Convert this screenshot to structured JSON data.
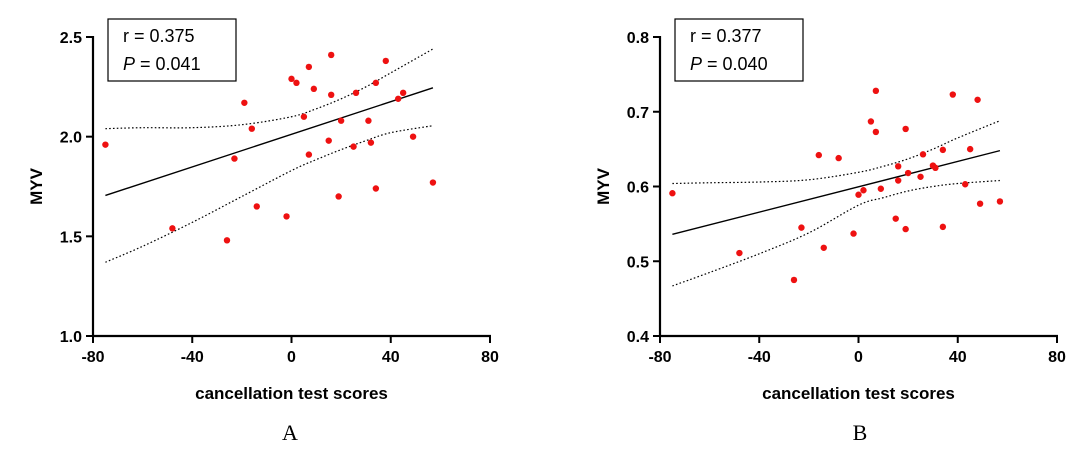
{
  "figure": {
    "panel_labels": [
      "A",
      "B"
    ]
  },
  "chart_data": [
    {
      "type": "scatter",
      "panel": "A",
      "xlabel": "cancellation test scores",
      "ylabel": "MYV",
      "xlim": [
        -80,
        80
      ],
      "ylim": [
        1.0,
        2.5
      ],
      "xticks": [
        -80,
        -40,
        0,
        40,
        80
      ],
      "yticks": [
        1.0,
        1.5,
        2.0,
        2.5
      ],
      "ytick_labels": [
        "1.0",
        "1.5",
        "2.0",
        "2.5"
      ],
      "stats": {
        "r_label": "r  = 0.375",
        "p_prefix": "P",
        "p_rest": " = 0.041"
      },
      "regression": {
        "x": [
          -75,
          57
        ],
        "y": [
          1.705,
          2.245
        ]
      },
      "ci_band": {
        "x": [
          -75,
          -60,
          -40,
          -20,
          0,
          10,
          20,
          30,
          40,
          57
        ],
        "upper": [
          2.04,
          2.045,
          2.045,
          2.06,
          2.1,
          2.14,
          2.19,
          2.25,
          2.32,
          2.44
        ],
        "lower": [
          1.37,
          1.45,
          1.57,
          1.7,
          1.83,
          1.885,
          1.935,
          1.98,
          2.02,
          2.055
        ]
      },
      "points": [
        {
          "x": -75,
          "y": 1.96
        },
        {
          "x": -48,
          "y": 1.54
        },
        {
          "x": -26,
          "y": 1.48
        },
        {
          "x": -23,
          "y": 1.89
        },
        {
          "x": -19,
          "y": 2.17
        },
        {
          "x": -16,
          "y": 2.04
        },
        {
          "x": -14,
          "y": 1.65
        },
        {
          "x": -2,
          "y": 1.6
        },
        {
          "x": 0,
          "y": 2.29
        },
        {
          "x": 2,
          "y": 2.27
        },
        {
          "x": 5,
          "y": 2.1
        },
        {
          "x": 7,
          "y": 2.35
        },
        {
          "x": 7,
          "y": 1.91
        },
        {
          "x": 9,
          "y": 2.24
        },
        {
          "x": 15,
          "y": 1.98
        },
        {
          "x": 16,
          "y": 2.41
        },
        {
          "x": 16,
          "y": 2.21
        },
        {
          "x": 19,
          "y": 1.7
        },
        {
          "x": 20,
          "y": 2.08
        },
        {
          "x": 25,
          "y": 1.95
        },
        {
          "x": 26,
          "y": 2.22
        },
        {
          "x": 31,
          "y": 2.08
        },
        {
          "x": 32,
          "y": 1.97
        },
        {
          "x": 34,
          "y": 1.74
        },
        {
          "x": 34,
          "y": 2.27
        },
        {
          "x": 38,
          "y": 2.38
        },
        {
          "x": 43,
          "y": 2.19
        },
        {
          "x": 45,
          "y": 2.22
        },
        {
          "x": 49,
          "y": 2.0
        },
        {
          "x": 57,
          "y": 1.77
        }
      ]
    },
    {
      "type": "scatter",
      "panel": "B",
      "xlabel": "cancellation test scores",
      "ylabel": "MYV",
      "xlim": [
        -80,
        80
      ],
      "ylim": [
        0.4,
        0.8
      ],
      "xticks": [
        -80,
        -40,
        0,
        40,
        80
      ],
      "yticks": [
        0.4,
        0.5,
        0.6,
        0.7,
        0.8
      ],
      "ytick_labels": [
        "0.4",
        "0.5",
        "0.6",
        "0.7",
        "0.8"
      ],
      "stats": {
        "r_label": "r  = 0.377",
        "p_prefix": "P",
        "p_rest": " = 0.040"
      },
      "regression": {
        "x": [
          -75,
          57
        ],
        "y": [
          0.536,
          0.648
        ]
      },
      "ci_band": {
        "x": [
          -75,
          -60,
          -40,
          -20,
          0,
          10,
          20,
          30,
          40,
          57
        ],
        "upper": [
          0.604,
          0.605,
          0.606,
          0.609,
          0.619,
          0.627,
          0.637,
          0.65,
          0.665,
          0.688
        ],
        "lower": [
          0.467,
          0.485,
          0.51,
          0.538,
          0.575,
          0.585,
          0.594,
          0.6,
          0.604,
          0.608
        ]
      },
      "points": [
        {
          "x": -75,
          "y": 0.591
        },
        {
          "x": -48,
          "y": 0.511
        },
        {
          "x": -26,
          "y": 0.475
        },
        {
          "x": -23,
          "y": 0.545
        },
        {
          "x": -16,
          "y": 0.642
        },
        {
          "x": -14,
          "y": 0.518
        },
        {
          "x": -8,
          "y": 0.638
        },
        {
          "x": -2,
          "y": 0.537
        },
        {
          "x": 0,
          "y": 0.589
        },
        {
          "x": 2,
          "y": 0.595
        },
        {
          "x": 5,
          "y": 0.687
        },
        {
          "x": 7,
          "y": 0.728
        },
        {
          "x": 7,
          "y": 0.673
        },
        {
          "x": 9,
          "y": 0.597
        },
        {
          "x": 15,
          "y": 0.557
        },
        {
          "x": 16,
          "y": 0.627
        },
        {
          "x": 16,
          "y": 0.608
        },
        {
          "x": 19,
          "y": 0.543
        },
        {
          "x": 19,
          "y": 0.677
        },
        {
          "x": 20,
          "y": 0.618
        },
        {
          "x": 25,
          "y": 0.613
        },
        {
          "x": 26,
          "y": 0.643
        },
        {
          "x": 30,
          "y": 0.628
        },
        {
          "x": 31,
          "y": 0.625
        },
        {
          "x": 34,
          "y": 0.546
        },
        {
          "x": 34,
          "y": 0.649
        },
        {
          "x": 38,
          "y": 0.723
        },
        {
          "x": 43,
          "y": 0.603
        },
        {
          "x": 45,
          "y": 0.65
        },
        {
          "x": 48,
          "y": 0.716
        },
        {
          "x": 49,
          "y": 0.577
        },
        {
          "x": 57,
          "y": 0.58
        }
      ]
    }
  ]
}
